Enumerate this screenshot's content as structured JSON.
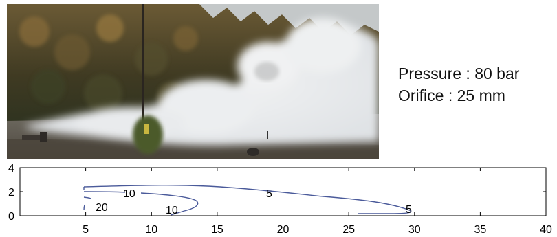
{
  "caption": {
    "pressure": "Pressure : 80 bar",
    "orifice": "Orifice : 25 mm"
  },
  "photo": {
    "description_icon": "gas-jet-photo",
    "sky": "#c7cbcb",
    "trees": "#5a4a2b",
    "ground": "#5b554c",
    "cloud": "#eceef0"
  },
  "plot": {
    "x_ticks": [
      "5",
      "10",
      "15",
      "20",
      "25",
      "30",
      "35",
      "40"
    ],
    "y_ticks": [
      "0",
      "2",
      "4"
    ],
    "xlim": [
      0,
      40
    ],
    "ylim": [
      0,
      4
    ],
    "contour_labels": [
      "20",
      "10",
      "10",
      "5",
      "5"
    ],
    "line_color": "#4a5a9a"
  }
}
